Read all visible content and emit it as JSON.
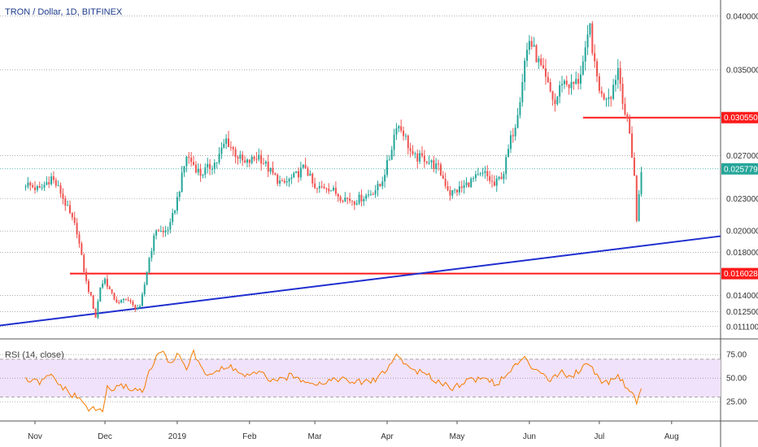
{
  "chart_data": {
    "type": "candlestick",
    "title": "TRON / Dollar, 1D, BITFINEX",
    "colors": {
      "up": "#26a69a",
      "down": "#ef5350",
      "rsi": "#f57c00",
      "trendline": "#1f2ecf",
      "level": "#ff1a1a",
      "rsi_band": "#7b1fa2"
    },
    "y_ticks": [
      "0.040000",
      "0.035000",
      "0.030550",
      "0.027000",
      "0.025779",
      "0.023000",
      "0.020000",
      "0.018000",
      "0.016028",
      "0.014000",
      "0.012500",
      "0.011100"
    ],
    "x_labels": [
      "Nov",
      "Dec",
      "2019",
      "Feb",
      "Mar",
      "Apr",
      "May",
      "Jun",
      "Jul",
      "Aug"
    ],
    "price_points": [
      [
        "2018-10-28",
        0.0244
      ],
      [
        "2018-11-03",
        0.0238
      ],
      [
        "2018-11-08",
        0.025
      ],
      [
        "2018-11-12",
        0.0236
      ],
      [
        "2018-11-16",
        0.0215
      ],
      [
        "2018-11-19",
        0.02
      ],
      [
        "2018-11-21",
        0.0175
      ],
      [
        "2018-11-23",
        0.0152
      ],
      [
        "2018-11-25",
        0.0138
      ],
      [
        "2018-11-27",
        0.012
      ],
      [
        "2018-11-29",
        0.0148
      ],
      [
        "2018-12-01",
        0.0155
      ],
      [
        "2018-12-04",
        0.014
      ],
      [
        "2018-12-07",
        0.0132
      ],
      [
        "2018-12-10",
        0.0138
      ],
      [
        "2018-12-13",
        0.013
      ],
      [
        "2018-12-16",
        0.0128
      ],
      [
        "2018-12-18",
        0.015
      ],
      [
        "2018-12-20",
        0.0175
      ],
      [
        "2018-12-23",
        0.0202
      ],
      [
        "2018-12-26",
        0.0198
      ],
      [
        "2018-12-29",
        0.0205
      ],
      [
        "2019-01-01",
        0.023
      ],
      [
        "2019-01-03",
        0.025
      ],
      [
        "2019-01-05",
        0.027
      ],
      [
        "2019-01-08",
        0.0262
      ],
      [
        "2019-01-11",
        0.0253
      ],
      [
        "2019-01-14",
        0.0258
      ],
      [
        "2019-01-18",
        0.0265
      ],
      [
        "2019-01-22",
        0.0285
      ],
      [
        "2019-01-26",
        0.0272
      ],
      [
        "2019-01-30",
        0.0262
      ],
      [
        "2019-02-05",
        0.027
      ],
      [
        "2019-02-10",
        0.0255
      ],
      [
        "2019-02-15",
        0.0243
      ],
      [
        "2019-02-20",
        0.025
      ],
      [
        "2019-02-25",
        0.026
      ],
      [
        "2019-03-01",
        0.0238
      ],
      [
        "2019-03-06",
        0.0242
      ],
      [
        "2019-03-12",
        0.0232
      ],
      [
        "2019-03-18",
        0.0228
      ],
      [
        "2019-03-24",
        0.0234
      ],
      [
        "2019-03-29",
        0.0242
      ],
      [
        "2019-04-02",
        0.0268
      ],
      [
        "2019-04-05",
        0.03
      ],
      [
        "2019-04-08",
        0.0292
      ],
      [
        "2019-04-12",
        0.0268
      ],
      [
        "2019-04-17",
        0.0268
      ],
      [
        "2019-04-23",
        0.0258
      ],
      [
        "2019-04-28",
        0.0235
      ],
      [
        "2019-05-03",
        0.024
      ],
      [
        "2019-05-08",
        0.0248
      ],
      [
        "2019-05-13",
        0.0253
      ],
      [
        "2019-05-17",
        0.0242
      ],
      [
        "2019-05-21",
        0.0255
      ],
      [
        "2019-05-24",
        0.0285
      ],
      [
        "2019-05-26",
        0.03
      ],
      [
        "2019-05-28",
        0.0325
      ],
      [
        "2019-05-30",
        0.0358
      ],
      [
        "2019-06-01",
        0.0378
      ],
      [
        "2019-06-04",
        0.0362
      ],
      [
        "2019-06-08",
        0.034
      ],
      [
        "2019-06-12",
        0.0318
      ],
      [
        "2019-06-15",
        0.034
      ],
      [
        "2019-06-19",
        0.0335
      ],
      [
        "2019-06-22",
        0.034
      ],
      [
        "2019-06-25",
        0.0365
      ],
      [
        "2019-06-27",
        0.039
      ],
      [
        "2019-06-29",
        0.0352
      ],
      [
        "2019-07-02",
        0.0325
      ],
      [
        "2019-07-06",
        0.0328
      ],
      [
        "2019-07-09",
        0.0352
      ],
      [
        "2019-07-12",
        0.031
      ],
      [
        "2019-07-14",
        0.029
      ],
      [
        "2019-07-16",
        0.0252
      ],
      [
        "2019-07-17",
        0.0208
      ],
      [
        "2019-07-18",
        0.0235
      ],
      [
        "2019-07-19",
        0.0258
      ]
    ],
    "rsi_title": "RSI (14, close)",
    "rsi_ticks": [
      "75.00",
      "50.00",
      "25.00"
    ],
    "rsi_bands": [
      70,
      30
    ],
    "rsi_points": [
      [
        "2018-10-28",
        48
      ],
      [
        "2018-11-03",
        45
      ],
      [
        "2018-11-08",
        53
      ],
      [
        "2018-11-12",
        42
      ],
      [
        "2018-11-16",
        33
      ],
      [
        "2018-11-19",
        30
      ],
      [
        "2018-11-21",
        25
      ],
      [
        "2018-11-23",
        20
      ],
      [
        "2018-11-25",
        16
      ],
      [
        "2018-11-28",
        17
      ],
      [
        "2018-11-30",
        15
      ],
      [
        "2018-12-02",
        40
      ],
      [
        "2018-12-05",
        38
      ],
      [
        "2018-12-09",
        42
      ],
      [
        "2018-12-13",
        38
      ],
      [
        "2018-12-17",
        37
      ],
      [
        "2018-12-20",
        55
      ],
      [
        "2018-12-23",
        72
      ],
      [
        "2018-12-25",
        78
      ],
      [
        "2018-12-29",
        67
      ],
      [
        "2019-01-02",
        75
      ],
      [
        "2019-01-05",
        60
      ],
      [
        "2019-01-08",
        78
      ],
      [
        "2019-01-10",
        65
      ],
      [
        "2019-01-14",
        54
      ],
      [
        "2019-01-19",
        58
      ],
      [
        "2019-01-24",
        62
      ],
      [
        "2019-01-30",
        52
      ],
      [
        "2019-02-06",
        55
      ],
      [
        "2019-02-12",
        45
      ],
      [
        "2019-02-18",
        52
      ],
      [
        "2019-02-25",
        48
      ],
      [
        "2019-03-03",
        44
      ],
      [
        "2019-03-10",
        50
      ],
      [
        "2019-03-18",
        45
      ],
      [
        "2019-03-26",
        47
      ],
      [
        "2019-04-02",
        62
      ],
      [
        "2019-04-05",
        75
      ],
      [
        "2019-04-10",
        62
      ],
      [
        "2019-04-16",
        55
      ],
      [
        "2019-04-22",
        48
      ],
      [
        "2019-04-29",
        40
      ],
      [
        "2019-05-06",
        48
      ],
      [
        "2019-05-13",
        50
      ],
      [
        "2019-05-18",
        44
      ],
      [
        "2019-05-22",
        52
      ],
      [
        "2019-05-26",
        64
      ],
      [
        "2019-05-30",
        70
      ],
      [
        "2019-06-02",
        62
      ],
      [
        "2019-06-06",
        58
      ],
      [
        "2019-06-10",
        48
      ],
      [
        "2019-06-14",
        56
      ],
      [
        "2019-06-19",
        52
      ],
      [
        "2019-06-24",
        62
      ],
      [
        "2019-06-27",
        66
      ],
      [
        "2019-07-01",
        48
      ],
      [
        "2019-07-05",
        46
      ],
      [
        "2019-07-09",
        54
      ],
      [
        "2019-07-12",
        42
      ],
      [
        "2019-07-14",
        38
      ],
      [
        "2019-07-16",
        30
      ],
      [
        "2019-07-17",
        26
      ],
      [
        "2019-07-18",
        32
      ],
      [
        "2019-07-19",
        40
      ]
    ]
  }
}
